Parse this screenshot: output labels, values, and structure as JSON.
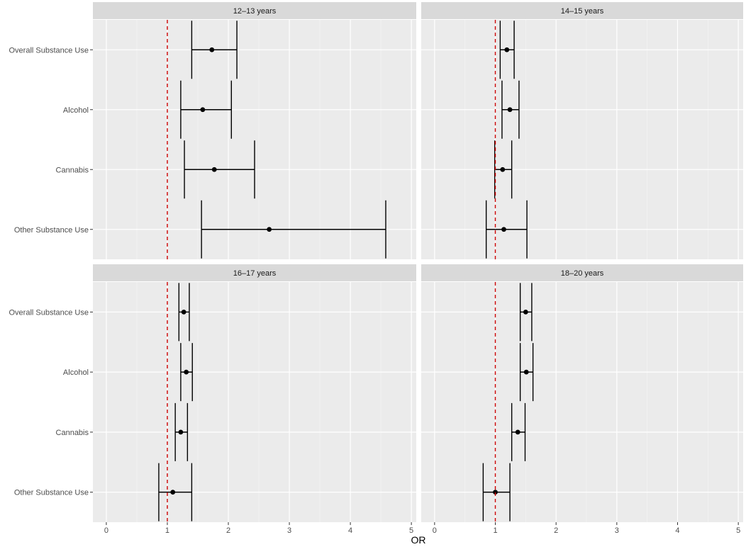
{
  "chart_data": {
    "type": "forest",
    "xlabel": "OR",
    "ylabel": "",
    "xlim": [
      -0.22,
      5.08
    ],
    "x_ticks": [
      0,
      1,
      2,
      3,
      4,
      5
    ],
    "reference_line": 1,
    "grid": true,
    "categories": [
      "Overall Substance Use",
      "Alcohol",
      "Cannabis",
      "Other Substance Use"
    ],
    "panels": [
      {
        "title": "12–13 years",
        "estimates": [
          {
            "label": "Overall Substance Use",
            "or": 1.73,
            "lower": 1.4,
            "upper": 2.14
          },
          {
            "label": "Alcohol",
            "or": 1.58,
            "lower": 1.22,
            "upper": 2.05
          },
          {
            "label": "Cannabis",
            "or": 1.77,
            "lower": 1.28,
            "upper": 2.43
          },
          {
            "label": "Other Substance Use",
            "or": 2.67,
            "lower": 1.56,
            "upper": 4.58
          }
        ]
      },
      {
        "title": "14–15 years",
        "estimates": [
          {
            "label": "Overall Substance Use",
            "or": 1.19,
            "lower": 1.08,
            "upper": 1.31
          },
          {
            "label": "Alcohol",
            "or": 1.24,
            "lower": 1.11,
            "upper": 1.39
          },
          {
            "label": "Cannabis",
            "or": 1.12,
            "lower": 0.99,
            "upper": 1.27
          },
          {
            "label": "Other Substance Use",
            "or": 1.14,
            "lower": 0.85,
            "upper": 1.52
          }
        ]
      },
      {
        "title": "16–17 years",
        "estimates": [
          {
            "label": "Overall Substance Use",
            "or": 1.27,
            "lower": 1.19,
            "upper": 1.36
          },
          {
            "label": "Alcohol",
            "or": 1.31,
            "lower": 1.22,
            "upper": 1.41
          },
          {
            "label": "Cannabis",
            "or": 1.22,
            "lower": 1.13,
            "upper": 1.33
          },
          {
            "label": "Other Substance Use",
            "or": 1.09,
            "lower": 0.86,
            "upper": 1.4
          }
        ]
      },
      {
        "title": "18–20 years",
        "estimates": [
          {
            "label": "Overall Substance Use",
            "or": 1.5,
            "lower": 1.41,
            "upper": 1.6
          },
          {
            "label": "Alcohol",
            "or": 1.51,
            "lower": 1.41,
            "upper": 1.62
          },
          {
            "label": "Cannabis",
            "or": 1.37,
            "lower": 1.27,
            "upper": 1.49
          },
          {
            "label": "Other Substance Use",
            "or": 1.0,
            "lower": 0.8,
            "upper": 1.24
          }
        ]
      }
    ],
    "colors": {
      "panel_background": "#ebebeb",
      "strip_background": "#d9d9d9",
      "grid_major": "#ffffff",
      "point": "#000000",
      "reference_line": "#cc0000"
    }
  }
}
